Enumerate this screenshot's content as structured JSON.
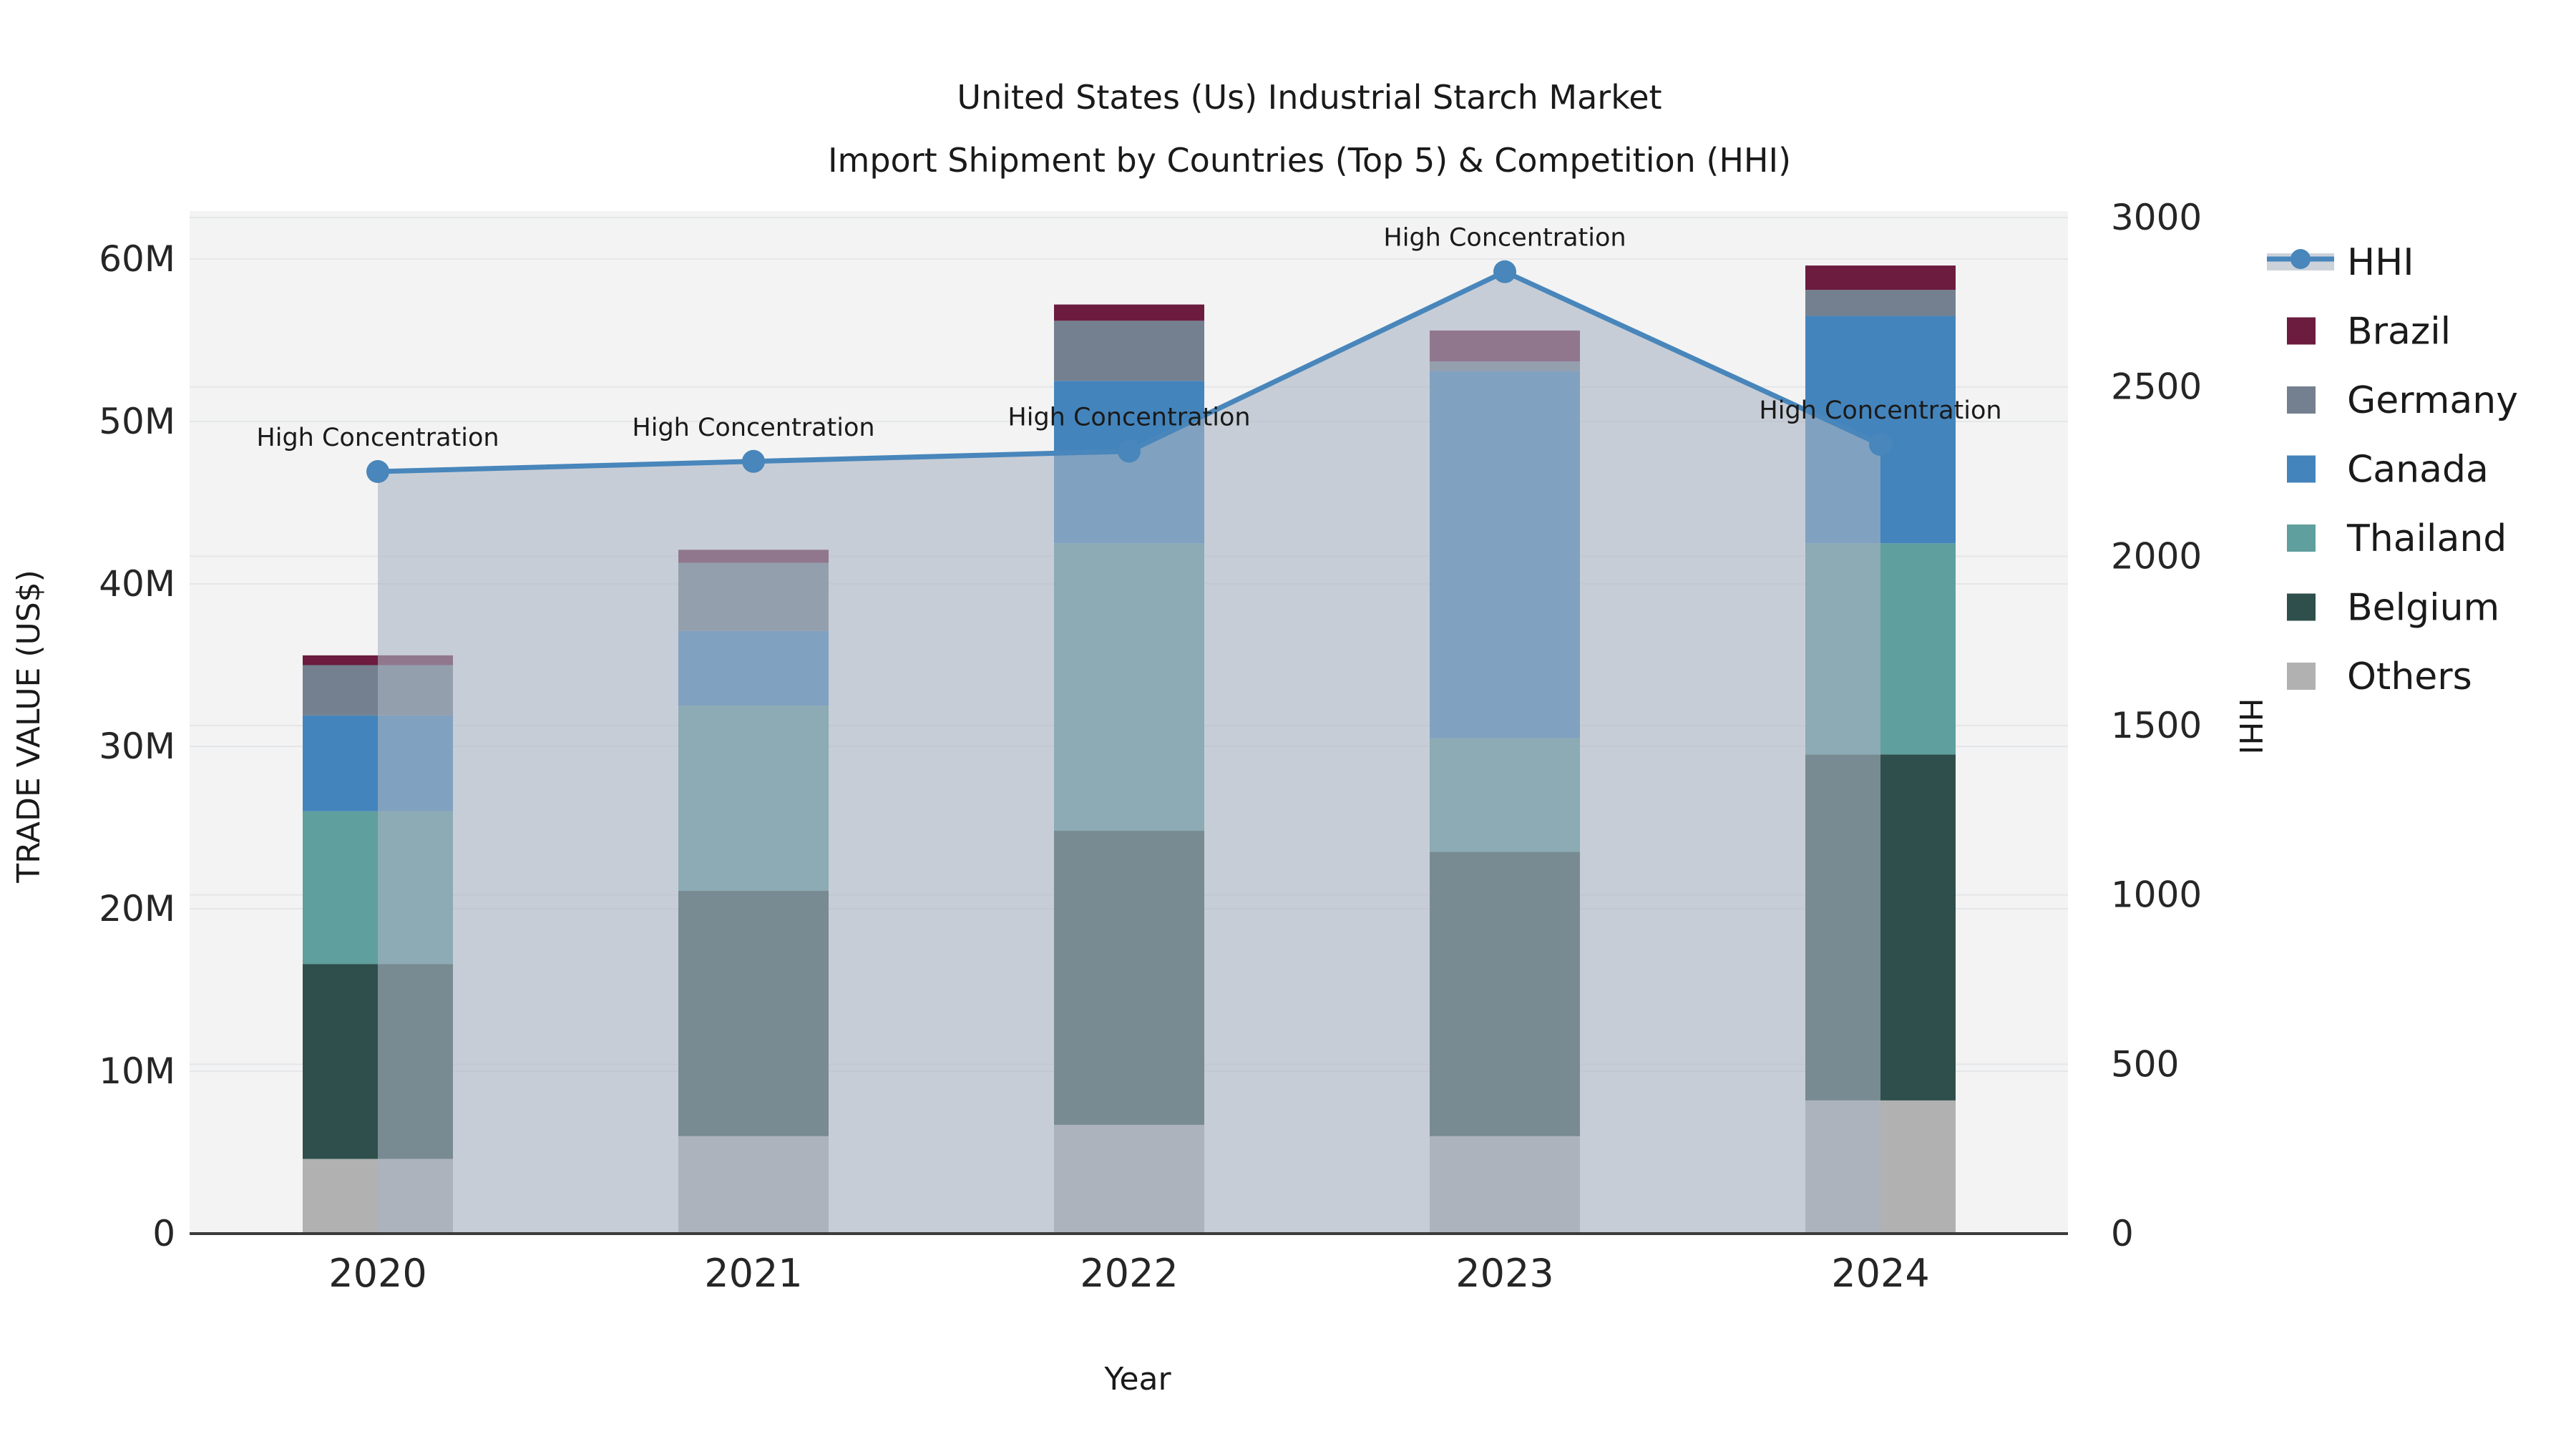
{
  "title": {
    "line1": "United States (Us) Industrial Starch Market",
    "line2": "Import Shipment by Countries (Top 5) & Competition (HHI)"
  },
  "axes": {
    "x_label": "Year",
    "y_left_label": "TRADE VALUE (US$)",
    "y_right_label": "HHI",
    "y_left_ticks": [
      "0",
      "10M",
      "20M",
      "30M",
      "40M",
      "50M",
      "60M"
    ],
    "y_left_tick_values": [
      0,
      10,
      20,
      30,
      40,
      50,
      60
    ],
    "y_right_ticks": [
      "0",
      "500",
      "1000",
      "1500",
      "2000",
      "2500",
      "3000"
    ],
    "y_right_tick_values": [
      0,
      500,
      1000,
      1500,
      2000,
      2500,
      3000
    ]
  },
  "annotation_label": "High Concentration",
  "colors": {
    "hhi_line": "#4886BB",
    "hhi_fill": "rgba(170,180,195,0.6)",
    "hhi_legend_band": "#CCD2DA",
    "brazil": "#6B1C3F",
    "germany": "#74808F",
    "canada": "#4484BC",
    "thailand": "#5F9F9D",
    "belgium": "#2E4F4B",
    "others": "#B1B1B1",
    "plot_bg": "#F3F3F3",
    "grid": "#E4E6E8",
    "spine": "#3B3B3B"
  },
  "legend": [
    {
      "label": "HHI",
      "type": "line",
      "color": "#4886BB"
    },
    {
      "label": "Brazil",
      "type": "swatch",
      "color": "#6B1C3F"
    },
    {
      "label": "Germany",
      "type": "swatch",
      "color": "#74808F"
    },
    {
      "label": "Canada",
      "type": "swatch",
      "color": "#4484BC"
    },
    {
      "label": "Thailand",
      "type": "swatch",
      "color": "#5F9F9D"
    },
    {
      "label": "Belgium",
      "type": "swatch",
      "color": "#2E4F4B"
    },
    {
      "label": "Others",
      "type": "swatch",
      "color": "#B1B1B1"
    }
  ],
  "chart_data": {
    "type": "combo: stacked-bar (left axis, US$ millions) + line (right axis, HHI)",
    "categories": [
      "2020",
      "2021",
      "2022",
      "2023",
      "2024"
    ],
    "stack_order_bottom_to_top": [
      "Others",
      "Belgium",
      "Thailand",
      "Canada",
      "Germany",
      "Brazil"
    ],
    "series": [
      {
        "name": "Others",
        "color": "#B1B1B1",
        "values_musd": [
          4.6,
          6.0,
          6.7,
          6.0,
          8.2
        ]
      },
      {
        "name": "Belgium",
        "color": "#2E4F4B",
        "values_musd": [
          12.0,
          15.1,
          18.1,
          17.5,
          21.3
        ]
      },
      {
        "name": "Thailand",
        "color": "#5F9F9D",
        "values_musd": [
          9.4,
          11.4,
          17.7,
          7.0,
          13.0
        ]
      },
      {
        "name": "Canada",
        "color": "#4484BC",
        "values_musd": [
          5.9,
          4.6,
          10.0,
          22.6,
          14.0
        ]
      },
      {
        "name": "Germany",
        "color": "#74808F",
        "values_musd": [
          3.1,
          4.2,
          3.7,
          0.6,
          1.6
        ]
      },
      {
        "name": "Brazil",
        "color": "#6B1C3F",
        "values_musd": [
          0.6,
          0.8,
          1.0,
          1.9,
          1.5
        ]
      }
    ],
    "totals_musd": [
      35.6,
      42.1,
      57.2,
      55.6,
      59.6
    ],
    "line": {
      "name": "HHI",
      "values": [
        2250,
        2280,
        2310,
        2840,
        2330
      ],
      "point_annotations": [
        "High Concentration",
        "High Concentration",
        "High Concentration",
        "High Concentration",
        "High Concentration"
      ],
      "area_fill_under_line": true
    },
    "title": "United States (Us) Industrial Starch Market — Import Shipment by Countries (Top 5) & Competition (HHI)",
    "xlabel": "Year",
    "ylabel_left": "TRADE VALUE (US$)",
    "ylabel_right": "HHI",
    "ylim_left_musd": [
      0,
      63
    ],
    "ylim_right": [
      0,
      3025
    ],
    "grid": true,
    "legend_position": "right"
  }
}
